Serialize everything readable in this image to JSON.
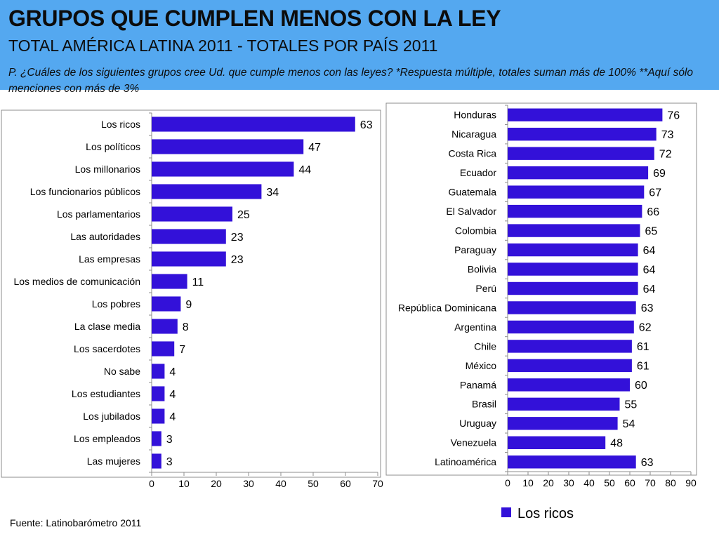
{
  "header": {
    "title": "GRUPOS QUE CUMPLEN MENOS CON LA LEY",
    "subtitle": "TOTAL AMÉRICA LATINA 2011 - TOTALES POR PAÍS 2011",
    "question": "P. ¿Cuáles de los siguientes grupos cree Ud. que cumple menos con las leyes? *Respuesta múltiple, totales suman más de 100% **Aquí sólo menciones con más de 3%"
  },
  "source": "Fuente: Latinobarómetro 2011",
  "colors": {
    "bar": "#3311d9",
    "header_bg": "#54a8f0"
  },
  "chart_data": [
    {
      "type": "bar",
      "orientation": "horizontal",
      "categories": [
        "Los ricos",
        "Los políticos",
        "Los millonarios",
        "Los funcionarios públicos",
        "Los parlamentarios",
        "Las autoridades",
        "Las empresas",
        "Los medios de comunicación",
        "Los pobres",
        "La clase media",
        "Los sacerdotes",
        "No sabe",
        "Los estudiantes",
        "Los jubilados",
        "Los empleados",
        "Las mujeres"
      ],
      "values": [
        63,
        47,
        44,
        34,
        25,
        23,
        23,
        11,
        9,
        8,
        7,
        4,
        4,
        4,
        3,
        3
      ],
      "xlim": [
        0,
        70
      ],
      "xticks": [
        0,
        10,
        20,
        30,
        40,
        50,
        60,
        70
      ],
      "data_labels": true,
      "grid": false,
      "legend": "none"
    },
    {
      "type": "bar",
      "orientation": "horizontal",
      "categories": [
        "Honduras",
        "Nicaragua",
        "Costa Rica",
        "Ecuador",
        "Guatemala",
        "El Salvador",
        "Colombia",
        "Paraguay",
        "Bolivia",
        "Perú",
        "República Dominicana",
        "Argentina",
        "Chile",
        "México",
        "Panamá",
        "Brasil",
        "Uruguay",
        "Venezuela",
        "Latinoamérica"
      ],
      "series": [
        {
          "name": "Los ricos",
          "values": [
            76,
            73,
            72,
            69,
            67,
            66,
            65,
            64,
            64,
            64,
            63,
            62,
            61,
            61,
            60,
            55,
            54,
            48,
            63
          ]
        }
      ],
      "xlim": [
        0,
        90
      ],
      "xticks": [
        0,
        10,
        20,
        30,
        40,
        50,
        60,
        70,
        80,
        90
      ],
      "data_labels": true,
      "grid": false,
      "legend": "bottom"
    }
  ]
}
